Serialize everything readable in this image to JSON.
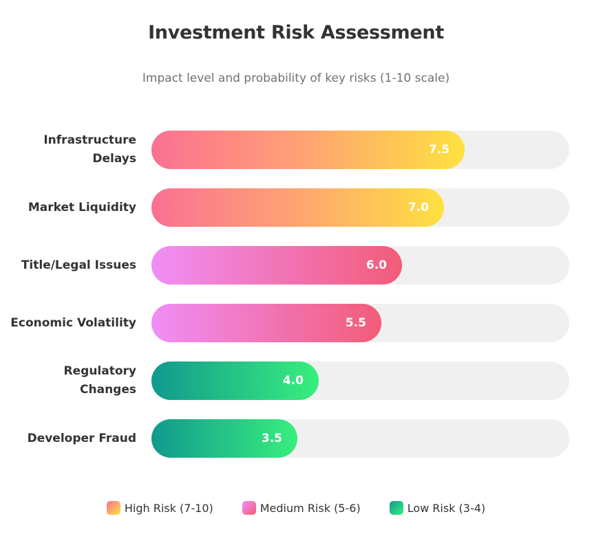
{
  "chart_data": {
    "type": "bar",
    "orientation": "horizontal",
    "title": "Investment Risk Assessment",
    "subtitle": "Impact level and probability of key risks (1-10 scale)",
    "xlim": [
      0,
      10
    ],
    "categories": [
      "Infrastructure Delays",
      "Market Liquidity",
      "Title/Legal Issues",
      "Economic Volatility",
      "Regulatory Changes",
      "Developer Fraud"
    ],
    "values": [
      7.5,
      7.0,
      6.0,
      5.5,
      4.0,
      3.5
    ],
    "value_labels": [
      "7.5",
      "7.0",
      "6.0",
      "5.5",
      "4.0",
      "3.5"
    ],
    "risk_levels": [
      "high",
      "high",
      "medium",
      "medium",
      "low",
      "low"
    ],
    "legend": [
      {
        "key": "high",
        "label": "High Risk (7-10)"
      },
      {
        "key": "medium",
        "label": "Medium Risk (5-6)"
      },
      {
        "key": "low",
        "label": "Low Risk (3-4)"
      }
    ],
    "legend_position": "bottom-center",
    "grid": false,
    "colors": {
      "high": [
        "#fa7092",
        "#fee140"
      ],
      "medium": [
        "#f08ef6",
        "#f25c78"
      ],
      "low": [
        "#11998e",
        "#38ef7d"
      ],
      "track": "#f0f0f0"
    }
  }
}
